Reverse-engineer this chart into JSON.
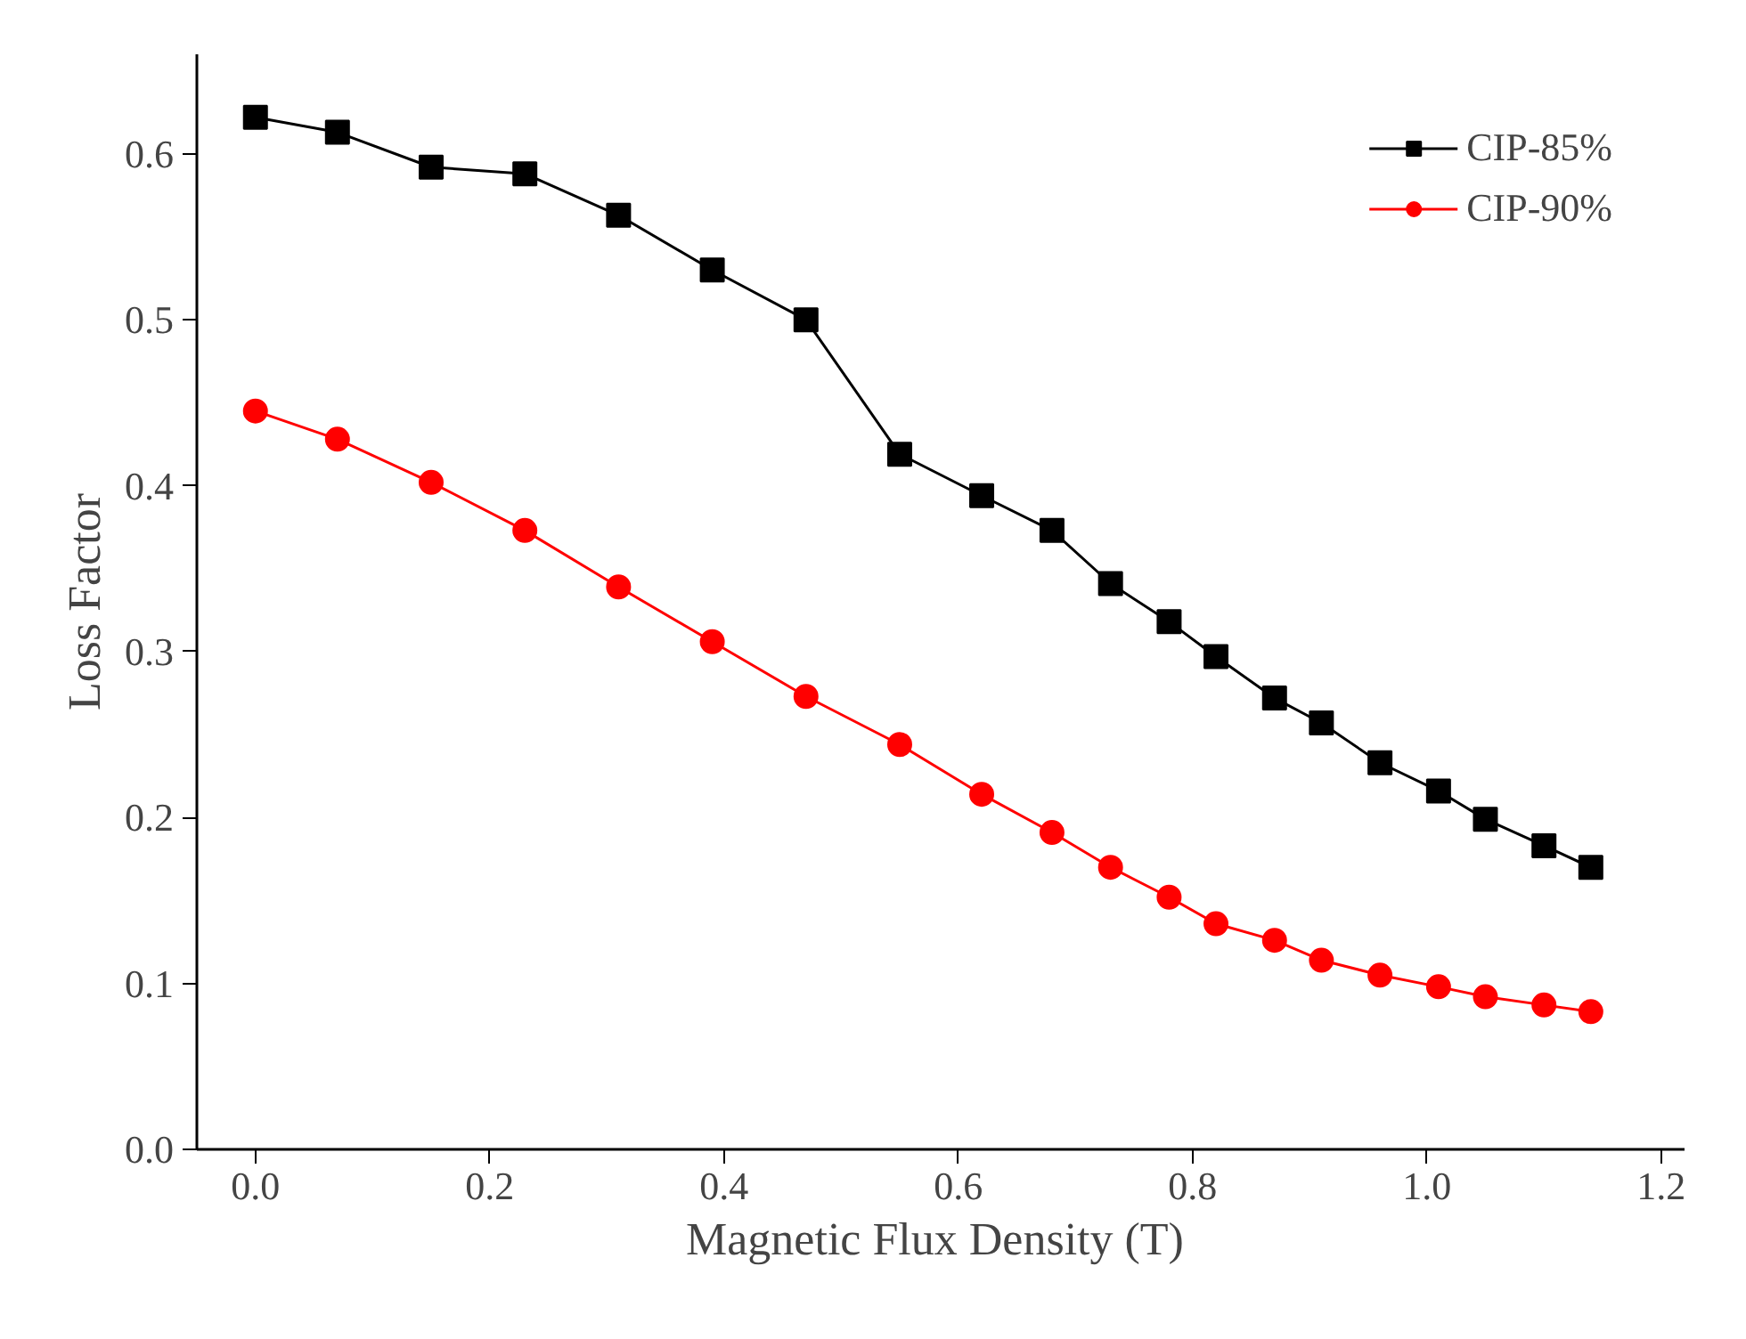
{
  "chart_data": {
    "type": "line",
    "xlabel": "Magnetic Flux Density  (T)",
    "ylabel": "Loss Factor",
    "x": [
      0.0,
      0.07,
      0.15,
      0.23,
      0.31,
      0.39,
      0.47,
      0.55,
      0.62,
      0.68,
      0.73,
      0.78,
      0.82,
      0.87,
      0.91,
      0.96,
      1.01,
      1.05,
      1.1,
      1.14
    ],
    "series": [
      {
        "name": "CIP-85%",
        "color": "#000000",
        "marker": "square",
        "values": [
          0.622,
          0.613,
          0.592,
          0.588,
          0.563,
          0.53,
          0.5,
          0.419,
          0.394,
          0.373,
          0.341,
          0.318,
          0.297,
          0.272,
          0.257,
          0.233,
          0.216,
          0.199,
          0.183,
          0.17
        ]
      },
      {
        "name": "CIP-90%",
        "color": "#ff0000",
        "marker": "circle",
        "values": [
          0.445,
          0.428,
          0.402,
          0.373,
          0.339,
          0.306,
          0.273,
          0.244,
          0.214,
          0.191,
          0.17,
          0.152,
          0.136,
          0.126,
          0.114,
          0.105,
          0.098,
          0.092,
          0.087,
          0.083
        ]
      }
    ],
    "xlim": [
      -0.05,
      1.22
    ],
    "ylim": [
      0.0,
      0.66
    ],
    "xticks": [
      {
        "value": 0.0,
        "label": "0.0"
      },
      {
        "value": 0.2,
        "label": "0.2"
      },
      {
        "value": 0.4,
        "label": "0.4"
      },
      {
        "value": 0.6,
        "label": "0.6"
      },
      {
        "value": 0.8,
        "label": "0.8"
      },
      {
        "value": 1.0,
        "label": "1.0"
      },
      {
        "value": 1.2,
        "label": "1.2"
      }
    ],
    "yticks": [
      {
        "value": 0.0,
        "label": "0.0"
      },
      {
        "value": 0.1,
        "label": "0.1"
      },
      {
        "value": 0.2,
        "label": "0.2"
      },
      {
        "value": 0.3,
        "label": "0.3"
      },
      {
        "value": 0.4,
        "label": "0.4"
      },
      {
        "value": 0.5,
        "label": "0.5"
      },
      {
        "value": 0.6,
        "label": "0.6"
      }
    ],
    "legend": "top right",
    "grid": false,
    "line_style": "solid"
  }
}
